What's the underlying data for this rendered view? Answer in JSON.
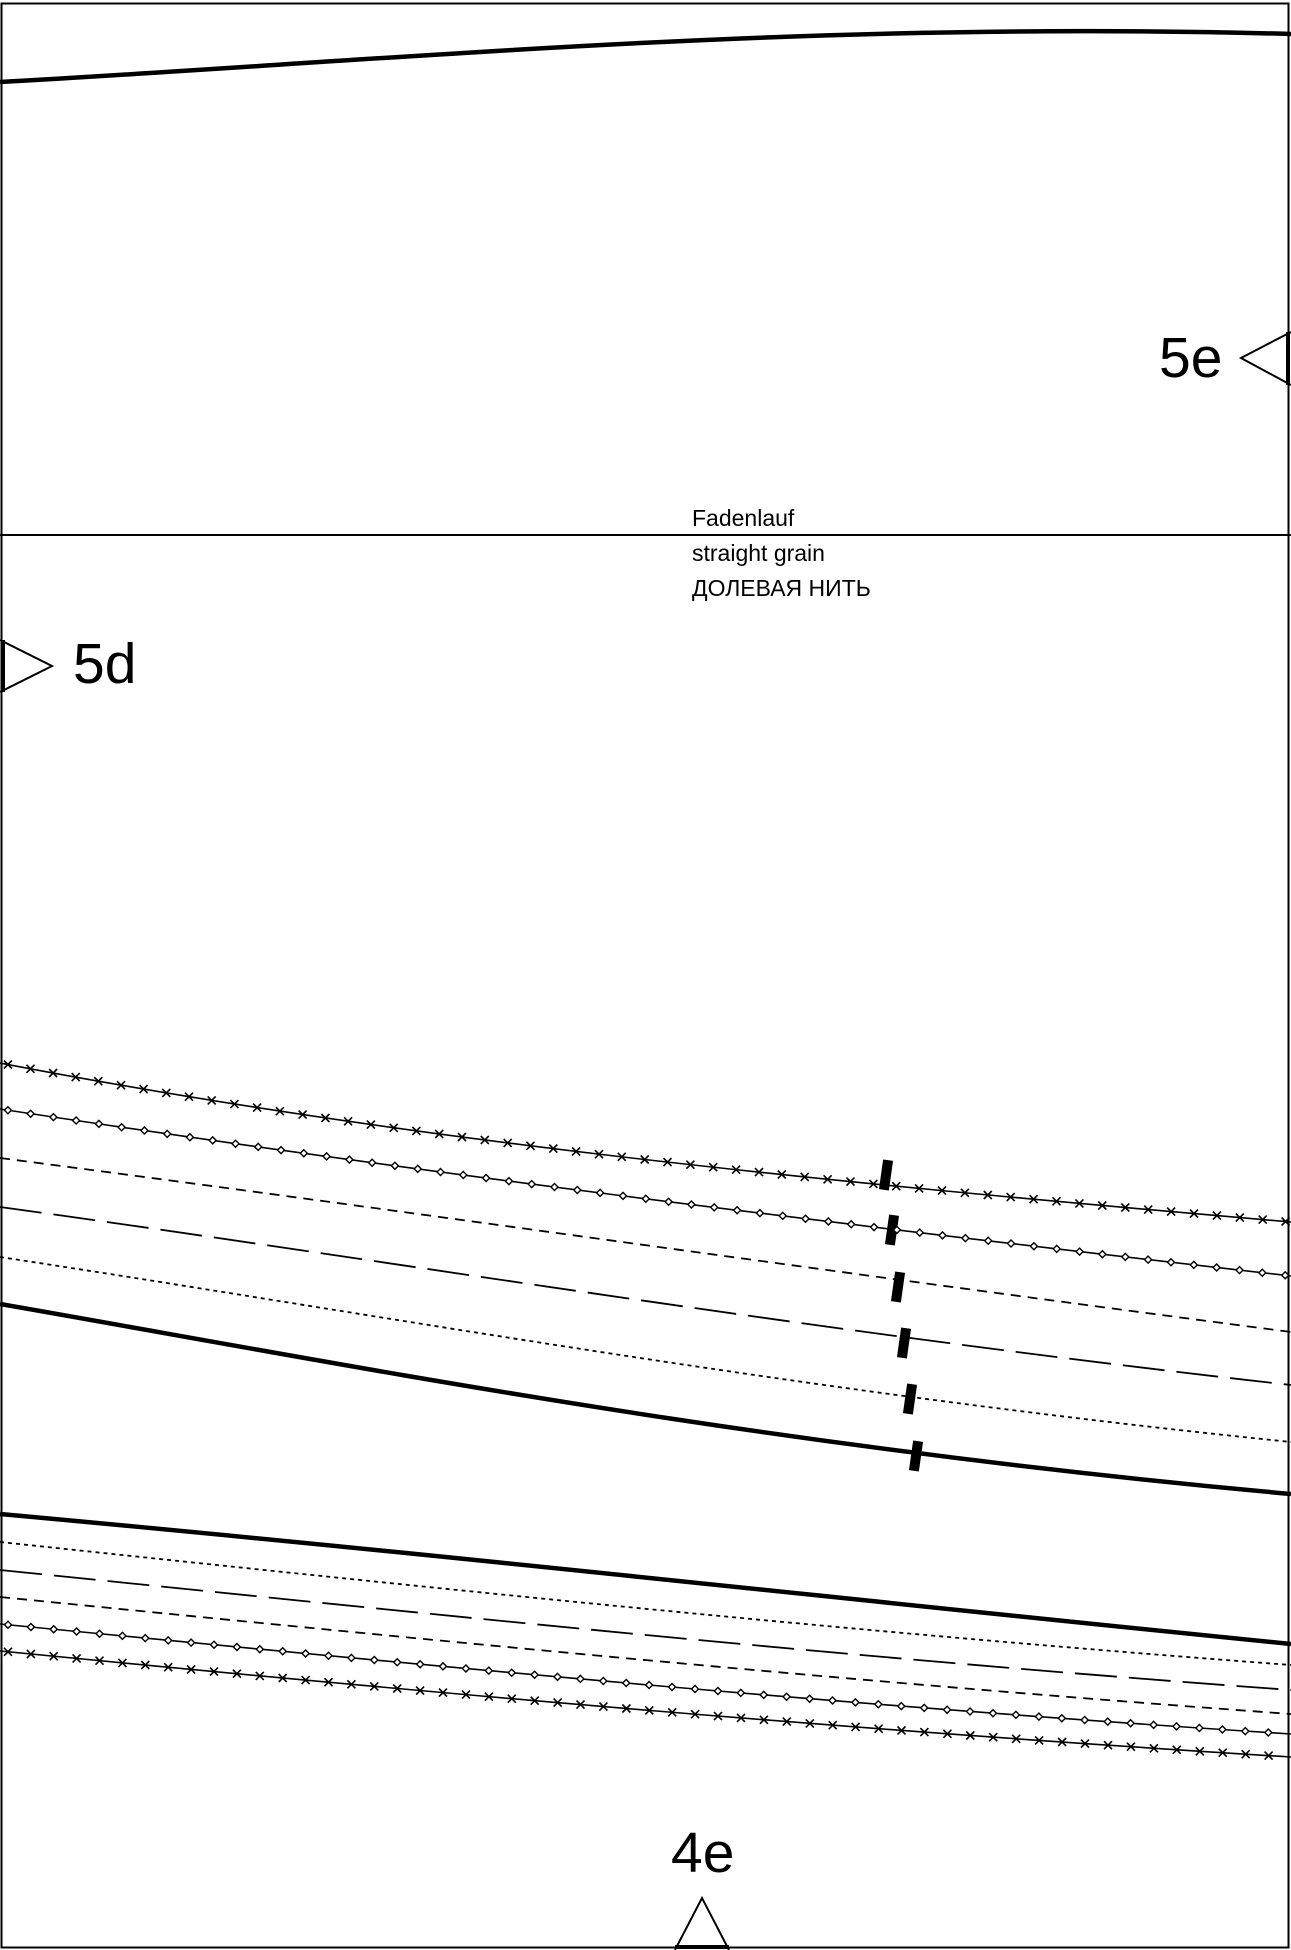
{
  "grain_labels": {
    "de": "Fadenlauf",
    "en": "straight grain",
    "ru": "ДОЛЕВАЯ НИТЬ"
  },
  "markers": {
    "right": "5e",
    "left": "5d",
    "bottom": "4e"
  },
  "line_styles": [
    "cross-marked",
    "dot-marked",
    "short-dash",
    "long-dash",
    "dotted",
    "solid"
  ],
  "colors": {
    "ink": "#000000",
    "paper": "#ffffff"
  }
}
